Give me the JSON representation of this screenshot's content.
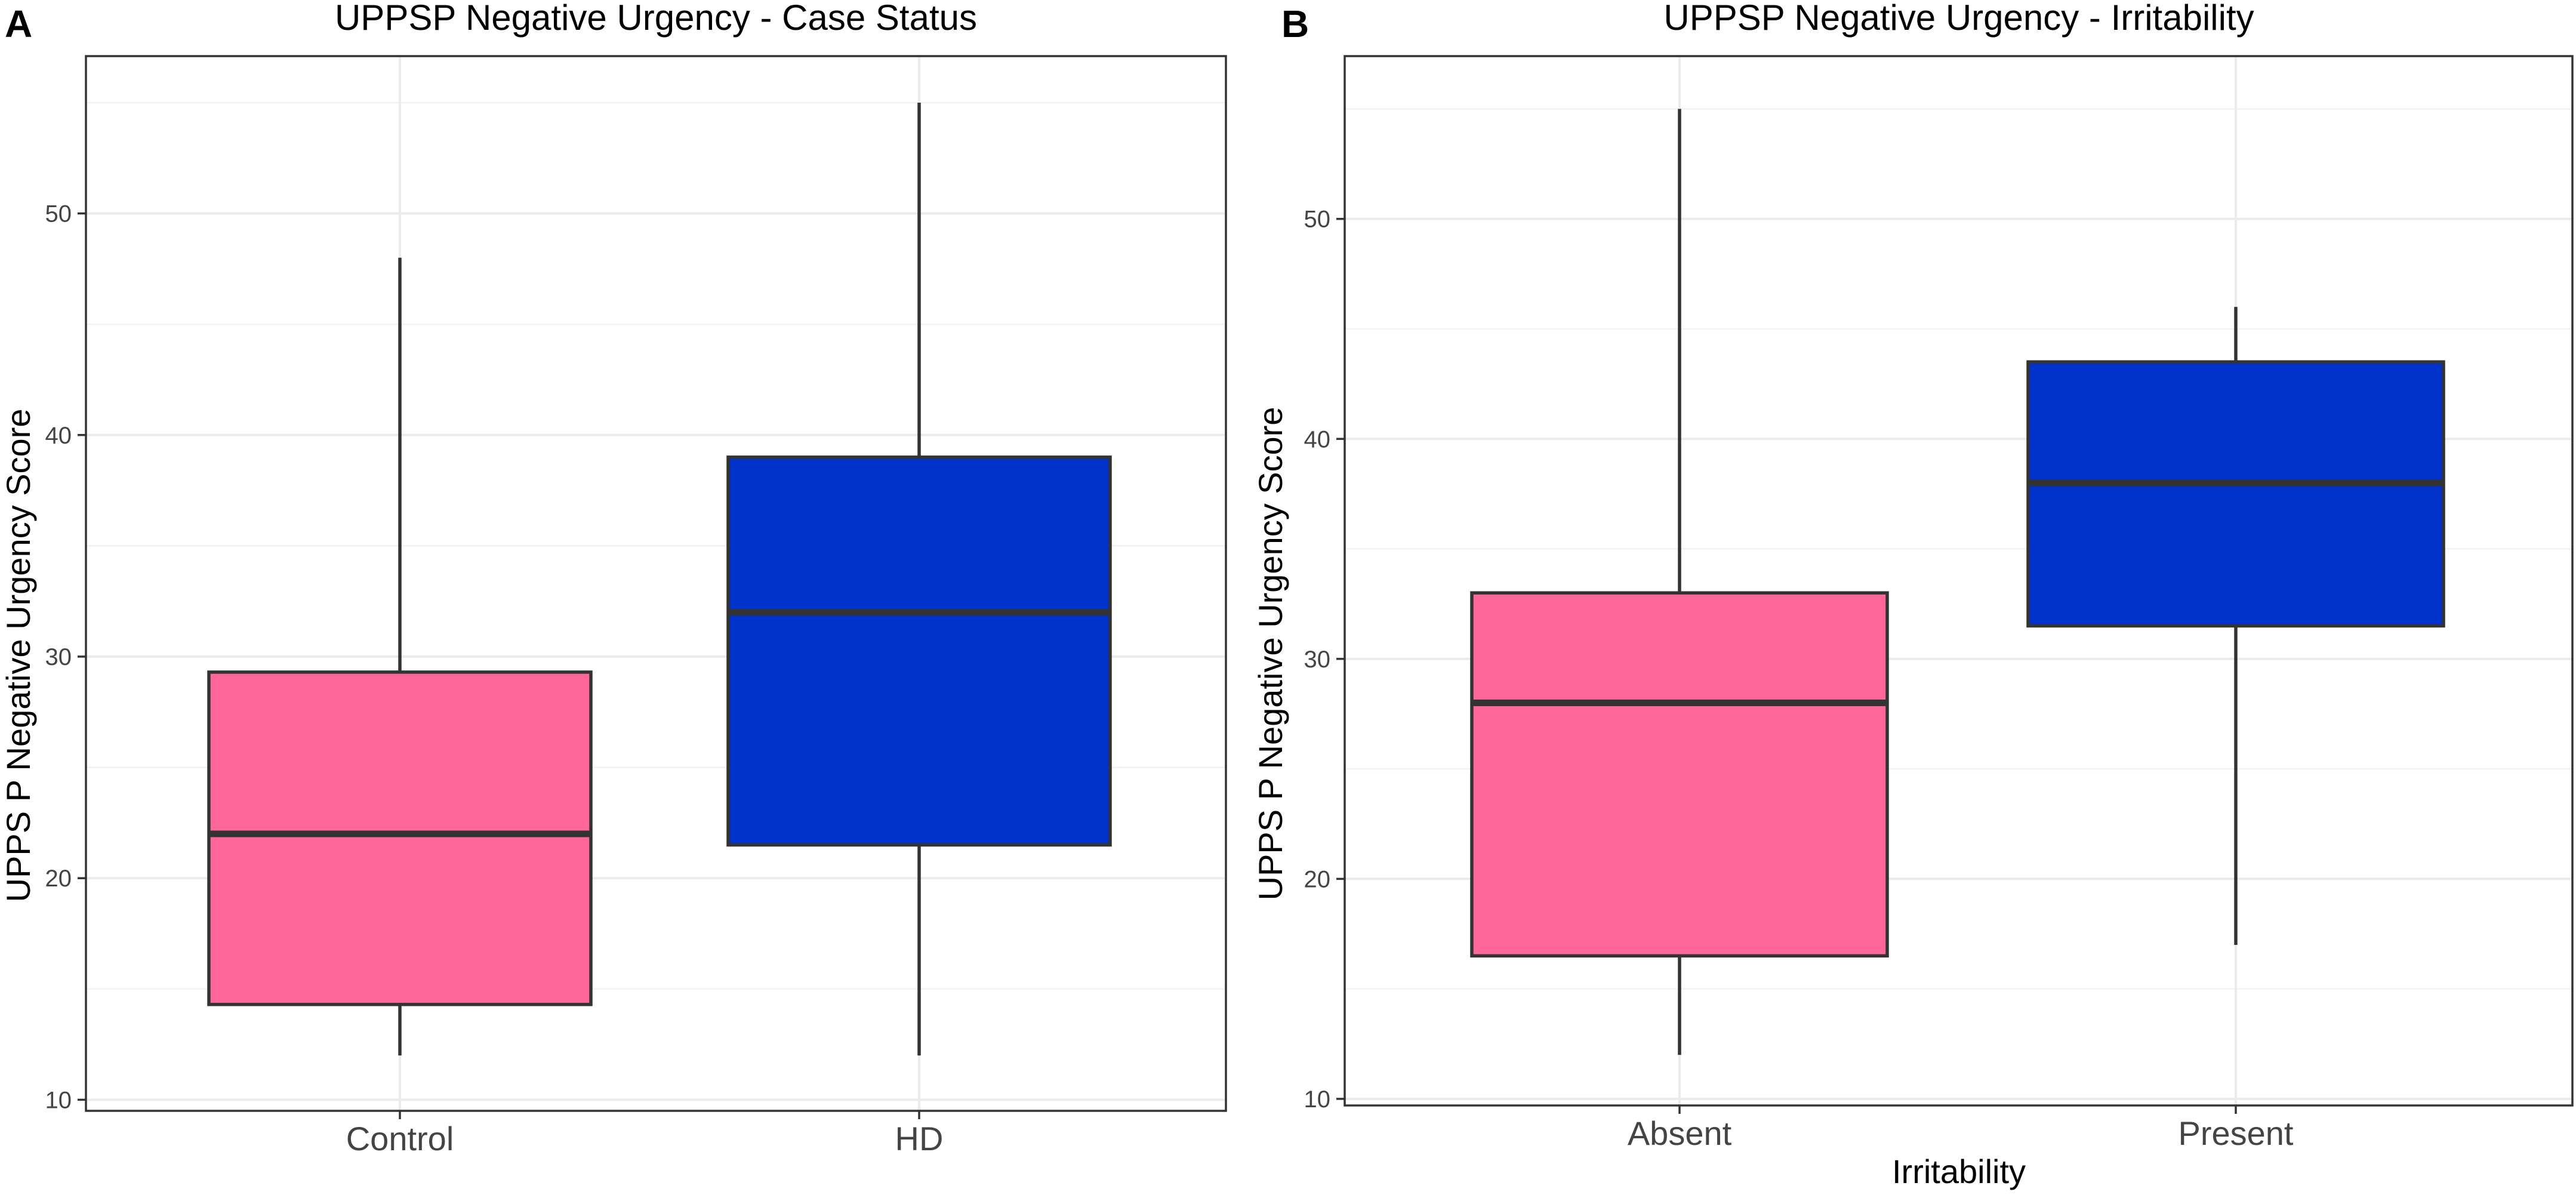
{
  "chart_data": [
    {
      "type": "box",
      "panel_label": "A",
      "title": "UPPSP Negative Urgency - Case Status",
      "xlabel": "",
      "ylabel": "UPPS P Negative Urgency Score",
      "ylim": [
        9.5,
        57.1
      ],
      "yticks": [
        10,
        20,
        30,
        40,
        50
      ],
      "ytick_labels": [
        "10",
        "20",
        "30",
        "40",
        "50"
      ],
      "yminor": [
        15,
        25,
        35,
        45,
        55
      ],
      "grid": true,
      "categories": [
        "Control",
        "HD"
      ],
      "fill_colors": [
        "#ff6699",
        "#0033cc"
      ],
      "boxes": [
        {
          "category": "Control",
          "min": 12,
          "q1": 14.3,
          "median": 22,
          "q3": 29.3,
          "max": 48
        },
        {
          "category": "HD",
          "min": 12,
          "q1": 21.5,
          "median": 32,
          "q3": 39,
          "max": 55
        }
      ]
    },
    {
      "type": "box",
      "panel_label": "B",
      "title": "UPPSP Negative Urgency - Irritability",
      "xlabel": "Irritability",
      "ylabel": "UPPS P Negative Urgency Score",
      "ylim": [
        9.7,
        57.4
      ],
      "yticks": [
        10,
        20,
        30,
        40,
        50
      ],
      "ytick_labels": [
        "10",
        "20",
        "30",
        "40",
        "50"
      ],
      "yminor": [
        15,
        25,
        35,
        45,
        55
      ],
      "grid": true,
      "categories": [
        "Absent",
        "Present"
      ],
      "fill_colors": [
        "#ff6699",
        "#0033cc"
      ],
      "boxes": [
        {
          "category": "Absent",
          "min": 12,
          "q1": 16.5,
          "median": 28,
          "q3": 33,
          "max": 55
        },
        {
          "category": "Present",
          "min": 17,
          "q1": 31.5,
          "median": 38,
          "q3": 43.5,
          "max": 46
        }
      ]
    }
  ]
}
